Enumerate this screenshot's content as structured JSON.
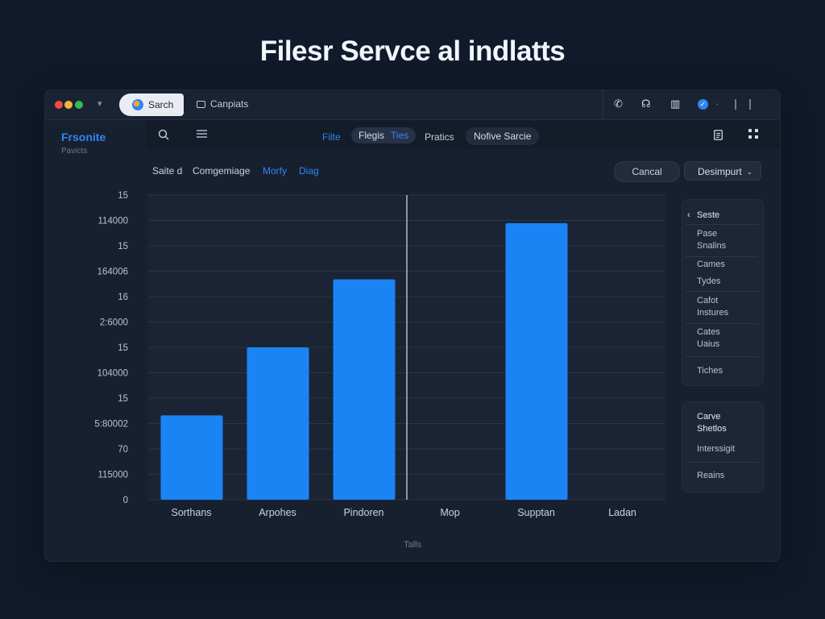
{
  "page_title": "Filesr Servcе al indlatts",
  "titlebar": {
    "active_tab": "Sarch",
    "second_tab": "Canpiats",
    "right_icons": [
      "phone-icon",
      "headset-icon",
      "grid-icon",
      "badge-icon",
      "more-icon"
    ]
  },
  "toolbar": {
    "brand": "Frsonite",
    "brand_sub": "Pavicts",
    "nav_filter": "Filte",
    "nav_pill_item1": "Flegis",
    "nav_pill_item2": "Ties",
    "nav_practices": "Pratics",
    "nav_pill2": "Nofive Sarcie"
  },
  "subbar": {
    "items": [
      "Saite d",
      "Comgemiage",
      "Morfy",
      "Diag"
    ],
    "cancel": "Cancal",
    "dropdown": "Desimpurt"
  },
  "chart_data": {
    "type": "bar",
    "y_tick_labels": [
      "15",
      "114000",
      "15",
      "164006",
      "16",
      "2:6000",
      "15",
      "104000",
      "15",
      "5:80002",
      "70",
      "115000",
      "0"
    ],
    "categories": [
      "Sorthans",
      "Arpohes",
      "Pindoren",
      "Mop",
      "Supptan",
      "Ladan"
    ],
    "values": [
      3.6,
      6.5,
      9.4,
      0,
      11.8,
      0
    ],
    "ylim": [
      0,
      13
    ],
    "x_footer": "Talls",
    "bar_color": "#1a84f5",
    "grid": true,
    "vertical_marker_after_category": 2
  },
  "side_panel_1": {
    "header": "Seste",
    "items": [
      "Pase\nSnalins",
      "Cames",
      "Tydes",
      "Cafot\nInstures",
      "Cates\nUaius",
      "Tiches"
    ]
  },
  "side_panel_2": {
    "items": [
      "Carve\nShetlos",
      "Interssigit",
      "Reains"
    ]
  },
  "colors": {
    "accent": "#2f86f0",
    "background": "#111a2b",
    "window": "#17202f"
  }
}
